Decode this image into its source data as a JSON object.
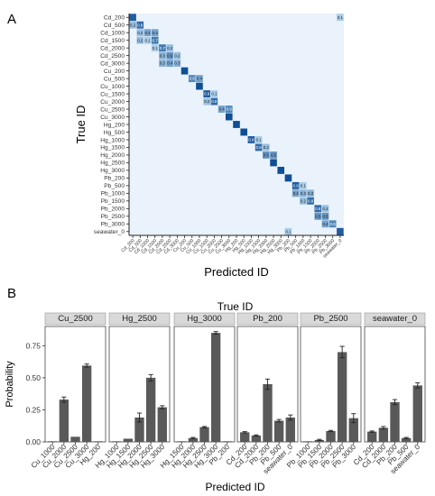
{
  "panel_labels": [
    "A",
    "B"
  ],
  "chart_data": [
    {
      "type": "heatmap",
      "panel": "A",
      "xlabel": "Predicted ID",
      "ylabel": "True ID",
      "categories": [
        "Cd_200",
        "Cd_500",
        "Cd_1000",
        "Cd_1500",
        "Cd_2000",
        "Cd_2500",
        "Cd_3000",
        "Cu_200",
        "Cu_500",
        "Cu_1000",
        "Cu_1500",
        "Cu_2000",
        "Cu_2500",
        "Cu_3000",
        "Hg_200",
        "Hg_500",
        "Hg_1000",
        "Hg_1500",
        "Hg_2000",
        "Hg_2500",
        "Hg_3000",
        "Pb_200",
        "Pb_500",
        "Pb_1000",
        "Pb_1500",
        "Pb_2000",
        "Pb_2500",
        "Pb_3000",
        "seawater_0"
      ],
      "cells": [
        {
          "true": "Cd_200",
          "pred": "Cd_200",
          "value": 0.9
        },
        {
          "true": "Cd_200",
          "pred": "seawater_0",
          "value": 0.1,
          "label": "0.1"
        },
        {
          "true": "Cd_500",
          "pred": "Cd_200",
          "value": 0.2,
          "label": "0.2"
        },
        {
          "true": "Cd_500",
          "pred": "Cd_500",
          "value": 0.8,
          "label": "0.8"
        },
        {
          "true": "Cd_1000",
          "pred": "Cd_500",
          "value": 0.2,
          "label": "0.2"
        },
        {
          "true": "Cd_1000",
          "pred": "Cd_1000",
          "value": 0.4,
          "label": "0.4"
        },
        {
          "true": "Cd_1000",
          "pred": "Cd_1500",
          "value": 0.4,
          "label": "0.4"
        },
        {
          "true": "Cd_1500",
          "pred": "Cd_500",
          "value": 0.2,
          "label": "0.2"
        },
        {
          "true": "Cd_1500",
          "pred": "Cd_1000",
          "value": 0.1,
          "label": "0.1"
        },
        {
          "true": "Cd_1500",
          "pred": "Cd_1500",
          "value": 0.7,
          "label": "0.7"
        },
        {
          "true": "Cd_2000",
          "pred": "Cd_1500",
          "value": 0.1,
          "label": "0.1"
        },
        {
          "true": "Cd_2000",
          "pred": "Cd_2000",
          "value": 0.7,
          "label": "0.7"
        },
        {
          "true": "Cd_2000",
          "pred": "Cd_2500",
          "value": 0.2,
          "label": "0.2"
        },
        {
          "true": "Cd_2500",
          "pred": "Cd_2000",
          "value": 0.3,
          "label": "0.3"
        },
        {
          "true": "Cd_2500",
          "pred": "Cd_2500",
          "value": 0.5,
          "label": "0.5"
        },
        {
          "true": "Cd_2500",
          "pred": "Cd_3000",
          "value": 0.2,
          "label": "0.2"
        },
        {
          "true": "Cd_3000",
          "pred": "Cd_2000",
          "value": 0.3,
          "label": "0.3"
        },
        {
          "true": "Cd_3000",
          "pred": "Cd_2500",
          "value": 0.4,
          "label": "0.4"
        },
        {
          "true": "Cd_3000",
          "pred": "Cd_3000",
          "value": 0.3,
          "label": "0.3"
        },
        {
          "true": "Cu_200",
          "pred": "Cu_200",
          "value": 1.0
        },
        {
          "true": "Cu_500",
          "pred": "Cu_500",
          "value": 0.6,
          "label": "0.6"
        },
        {
          "true": "Cu_500",
          "pred": "Cu_1000",
          "value": 0.4,
          "label": "0.4"
        },
        {
          "true": "Cu_1000",
          "pred": "Cu_1000",
          "value": 1.0
        },
        {
          "true": "Cu_1500",
          "pred": "Cu_1500",
          "value": 0.9,
          "label": "0.9"
        },
        {
          "true": "Cu_1500",
          "pred": "Cu_2000",
          "value": 0.1,
          "label": "0.1"
        },
        {
          "true": "Cu_2000",
          "pred": "Cu_1500",
          "value": 0.2,
          "label": "0.2"
        },
        {
          "true": "Cu_2000",
          "pred": "Cu_2000",
          "value": 0.8,
          "label": "0.8"
        },
        {
          "true": "Cu_2500",
          "pred": "Cu_2500",
          "value": 0.4,
          "label": "0.4"
        },
        {
          "true": "Cu_2500",
          "pred": "Cu_3000",
          "value": 0.6,
          "label": "0.6"
        },
        {
          "true": "Cu_3000",
          "pred": "Cu_3000",
          "value": 1.0
        },
        {
          "true": "Hg_200",
          "pred": "Hg_200",
          "value": 1.0
        },
        {
          "true": "Hg_500",
          "pred": "Hg_500",
          "value": 1.0
        },
        {
          "true": "Hg_1000",
          "pred": "Hg_1000",
          "value": 0.9,
          "label": "0.9"
        },
        {
          "true": "Hg_1000",
          "pred": "Hg_1500",
          "value": 0.1,
          "label": "0.1"
        },
        {
          "true": "Hg_1500",
          "pred": "Hg_1500",
          "value": 0.8,
          "label": "0.8"
        },
        {
          "true": "Hg_1500",
          "pred": "Hg_2000",
          "value": 0.2,
          "label": "0.2"
        },
        {
          "true": "Hg_2000",
          "pred": "Hg_2000",
          "value": 0.5,
          "label": "0.5"
        },
        {
          "true": "Hg_2000",
          "pred": "Hg_2500",
          "value": 0.5,
          "label": "0.5"
        },
        {
          "true": "Hg_2500",
          "pred": "Hg_2500",
          "value": 1.0
        },
        {
          "true": "Hg_3000",
          "pred": "Hg_3000",
          "value": 1.0
        },
        {
          "true": "Pb_200",
          "pred": "Pb_200",
          "value": 1.0
        },
        {
          "true": "Pb_500",
          "pred": "Pb_500",
          "value": 0.9,
          "label": "0.9"
        },
        {
          "true": "Pb_500",
          "pred": "Pb_1000",
          "value": 0.1,
          "label": "0.1"
        },
        {
          "true": "Pb_1000",
          "pred": "Pb_500",
          "value": 0.4,
          "label": "0.4"
        },
        {
          "true": "Pb_1000",
          "pred": "Pb_1000",
          "value": 0.3,
          "label": "0.3"
        },
        {
          "true": "Pb_1000",
          "pred": "Pb_1500",
          "value": 0.3,
          "label": "0.3"
        },
        {
          "true": "Pb_1500",
          "pred": "Pb_1000",
          "value": 0.2,
          "label": "0.2"
        },
        {
          "true": "Pb_1500",
          "pred": "Pb_1500",
          "value": 0.8,
          "label": "0.8"
        },
        {
          "true": "Pb_2000",
          "pred": "Pb_2000",
          "value": 0.8,
          "label": "0.8"
        },
        {
          "true": "Pb_2000",
          "pred": "Pb_2500",
          "value": 0.2,
          "label": "0.2"
        },
        {
          "true": "Pb_2500",
          "pred": "Pb_2000",
          "value": 0.5,
          "label": "0.5"
        },
        {
          "true": "Pb_2500",
          "pred": "Pb_2500",
          "value": 0.5,
          "label": "0.5"
        },
        {
          "true": "Pb_3000",
          "pred": "Pb_2500",
          "value": 0.4,
          "label": "0.4"
        },
        {
          "true": "Pb_3000",
          "pred": "Pb_3000",
          "value": 0.6,
          "label": "0.6"
        },
        {
          "true": "seawater_0",
          "pred": "Pb_200",
          "value": 0.1,
          "label": "0.1"
        },
        {
          "true": "seawater_0",
          "pred": "seawater_0",
          "value": 0.9
        }
      ],
      "colors": {
        "background": "#eaf2fc",
        "low": "#a9cde8",
        "high": "#0f4f95"
      }
    },
    {
      "type": "bar",
      "panel": "B",
      "title": "True ID",
      "xlabel": "Predicted ID",
      "ylabel": "Probability",
      "ylim": [
        0,
        0.9
      ],
      "yticks": [
        0.0,
        0.25,
        0.5,
        0.75
      ],
      "ytick_labels": [
        "0.00",
        "0.25",
        "0.50",
        "0.75"
      ],
      "grid": false,
      "colors": {
        "bar": "#595959",
        "strip": "#d9d9d9"
      },
      "facets": [
        {
          "name": "Cu_2500",
          "categories": [
            "Cu_1000",
            "Cu_2000",
            "Cu_2500",
            "Cu_3000",
            "Hg_200"
          ],
          "values": [
            0.005,
            0.33,
            0.04,
            0.595,
            0.005
          ],
          "errors": [
            0.0,
            0.02,
            0.0,
            0.012,
            0.0
          ]
        },
        {
          "name": "Hg_2500",
          "categories": [
            "Hg_1000",
            "Hg_1500",
            "Hg_2000",
            "Hg_2500",
            "Hg_3000"
          ],
          "values": [
            0.005,
            0.025,
            0.19,
            0.5,
            0.27
          ],
          "errors": [
            0.0,
            0.0,
            0.035,
            0.025,
            0.012
          ]
        },
        {
          "name": "Hg_3000",
          "categories": [
            "Hg_1500",
            "Hg_2000",
            "Hg_2500",
            "Hg_3000",
            "Pb_200"
          ],
          "values": [
            0.005,
            0.03,
            0.115,
            0.85,
            0.005
          ],
          "errors": [
            0.0,
            0.005,
            0.005,
            0.01,
            0.0
          ]
        },
        {
          "name": "Pb_200",
          "categories": [
            "Cd_200",
            "Cd_2000",
            "Pb_200",
            "Pb_500",
            "seawater_0"
          ],
          "values": [
            0.075,
            0.05,
            0.45,
            0.165,
            0.19
          ],
          "errors": [
            0.005,
            0.005,
            0.04,
            0.01,
            0.02
          ]
        },
        {
          "name": "Pb_2500",
          "categories": [
            "Pb_1000",
            "Pb_1500",
            "Pb_2000",
            "Pb_2500",
            "Pb_3000"
          ],
          "values": [
            0.005,
            0.015,
            0.085,
            0.7,
            0.185
          ],
          "errors": [
            0.0,
            0.005,
            0.005,
            0.045,
            0.035
          ]
        },
        {
          "name": "seawater_0",
          "categories": [
            "Cd_200",
            "Cd_2000",
            "Pb_200",
            "Pb_500",
            "seawater_0"
          ],
          "values": [
            0.08,
            0.11,
            0.31,
            0.03,
            0.44
          ],
          "errors": [
            0.005,
            0.01,
            0.02,
            0.005,
            0.02
          ]
        }
      ]
    }
  ]
}
